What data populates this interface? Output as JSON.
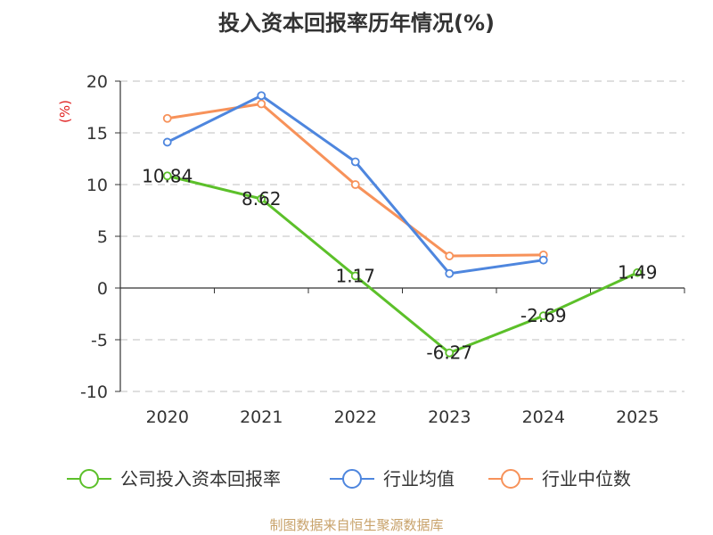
{
  "chart_data": {
    "type": "line",
    "title": "投入资本回报率历年情况(%)",
    "ylabel": "(%)",
    "xlabel": "",
    "categories": [
      "2020",
      "2021",
      "2022",
      "2023",
      "2024",
      "2025"
    ],
    "ylim": [
      -10,
      20
    ],
    "yticks": [
      -10,
      -5,
      0,
      5,
      10,
      15,
      20
    ],
    "grid": true,
    "legend_position": "bottom",
    "series": [
      {
        "name": "公司投入资本回报率",
        "color": "#5cc02a",
        "values": [
          10.84,
          8.62,
          1.17,
          -6.27,
          -2.69,
          1.49
        ],
        "labels": [
          "10.84",
          "8.62",
          "1.17",
          "-6.27",
          "-2.69",
          "1.49"
        ]
      },
      {
        "name": "行业均值",
        "color": "#4e86de",
        "values": [
          14.1,
          18.6,
          12.2,
          1.4,
          2.7,
          null
        ]
      },
      {
        "name": "行业中位数",
        "color": "#f7925a",
        "values": [
          16.4,
          17.8,
          10.0,
          3.1,
          3.2,
          null
        ]
      }
    ]
  },
  "source": "制图数据来自恒生聚源数据库"
}
